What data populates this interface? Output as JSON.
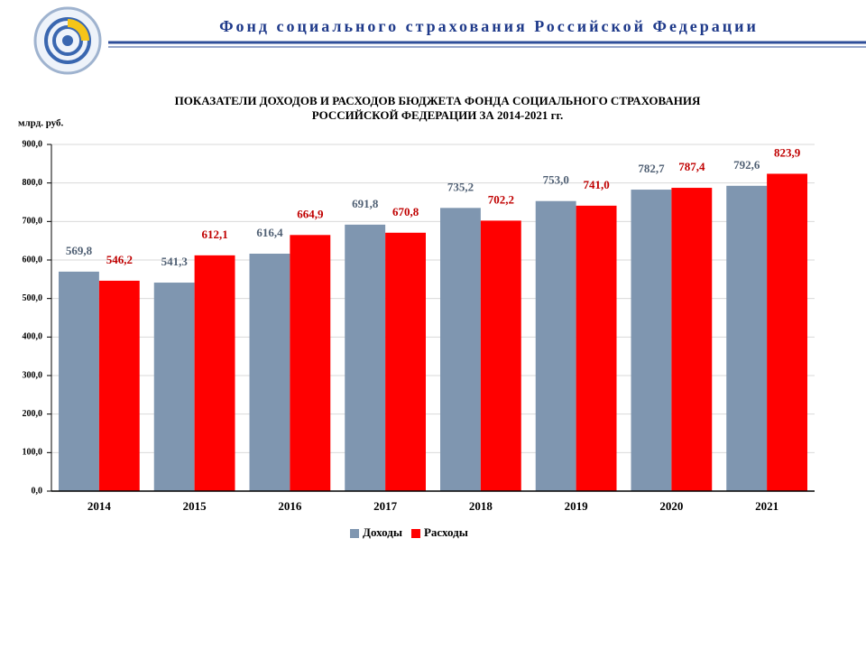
{
  "header": {
    "title": "Фонд социального страхования Российской Федерации"
  },
  "chart_data": {
    "type": "bar",
    "title": [
      "ПОКАЗАТЕЛИ  ДОХОДОВ И РАСХОДОВ БЮДЖЕТА ФОНДА СОЦИАЛЬНОГО  СТРАХОВАНИЯ",
      "РОССИЙСКОЙ  ФЕДЕРАЦИИ  ЗА 2014-2021 гг."
    ],
    "ylabel": "млрд.  руб.",
    "categories": [
      "2014",
      "2015",
      "2016",
      "2017",
      "2018",
      "2019",
      "2020",
      "2021"
    ],
    "series": [
      {
        "name": "Доходы",
        "color": "#7f96b0",
        "label_color": "#4f5f73",
        "values": [
          569.8,
          541.3,
          616.4,
          691.8,
          735.2,
          753.0,
          782.7,
          792.6
        ],
        "value_labels": [
          "569,8",
          "541,3",
          "616,4",
          "691,8",
          "735,2",
          "753,0",
          "782,7",
          "792,6"
        ]
      },
      {
        "name": "Расходы",
        "color": "#ff0000",
        "label_color": "#c00000",
        "values": [
          546.2,
          612.1,
          664.9,
          670.8,
          702.2,
          741.0,
          787.4,
          823.9
        ],
        "value_labels": [
          "546,2",
          "612,1",
          "664,9",
          "670,8",
          "702,2",
          "741,0",
          "787,4",
          "823,9"
        ]
      }
    ],
    "ylim": [
      0,
      900
    ],
    "yticks": [
      {
        "value": 0,
        "label": "0,0"
      },
      {
        "value": 100,
        "label": "100,0"
      },
      {
        "value": 200,
        "label": "200,0"
      },
      {
        "value": 300,
        "label": "300,0"
      },
      {
        "value": 400,
        "label": "400,0"
      },
      {
        "value": 500,
        "label": "500,0"
      },
      {
        "value": 600,
        "label": "600,0"
      },
      {
        "value": 700,
        "label": "700,0"
      },
      {
        "value": 800,
        "label": "800,0"
      },
      {
        "value": 900,
        "label": "900,0"
      }
    ],
    "grid": true,
    "legend": "bottom"
  }
}
